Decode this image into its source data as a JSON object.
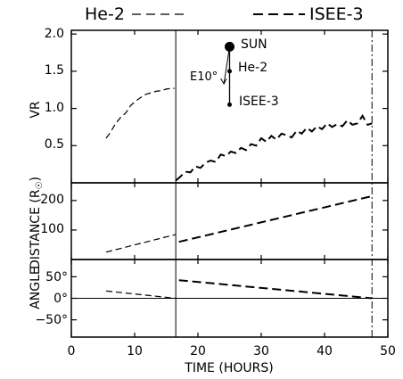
{
  "chart_data": {
    "type": "line",
    "xlabel": "TIME (HOURS)",
    "xlim": [
      0,
      50
    ],
    "xticks": [
      0,
      10,
      20,
      30,
      40,
      50
    ],
    "vertical_lines": [
      {
        "x": 16.5,
        "style": "solid"
      },
      {
        "x": 47.5,
        "style": "dash-dot"
      }
    ],
    "legend": {
      "placement": "top",
      "entries": [
        {
          "name": "He-2",
          "symbol": "- - -"
        },
        {
          "name": "ISEE-3",
          "symbol": "- - -"
        }
      ]
    },
    "panels": [
      {
        "ylabel": "VR",
        "ylim": [
          0,
          2.05
        ],
        "yticks": [
          "0.5",
          "1.0",
          "1.5",
          "2.0"
        ],
        "series": [
          {
            "name": "He-2",
            "dash": "short",
            "x": [
              5.5,
              6.2,
              7,
              7.8,
              8.6,
              9.4,
              10.2,
              11,
              11.8,
              12.6,
              13.4,
              14.2,
              15,
              15.8,
              16.3
            ],
            "y": [
              0.6,
              0.68,
              0.8,
              0.88,
              0.94,
              1.04,
              1.1,
              1.15,
              1.19,
              1.21,
              1.23,
              1.24,
              1.26,
              1.27,
              1.27
            ]
          },
          {
            "name": "ISEE-3",
            "dash": "long",
            "x": [
              16.5,
              17.2,
              18,
              18.8,
              19.6,
              20.4,
              21.2,
              22,
              22.8,
              23.6,
              24.4,
              25.2,
              26,
              26.8,
              27.6,
              28.4,
              29.2,
              30,
              30.8,
              31.6,
              32.4,
              33.2,
              34,
              34.8,
              35.6,
              36.4,
              37.2,
              38,
              38.8,
              39.6,
              40.4,
              41.2,
              42,
              42.8,
              43.6,
              44.4,
              45.2,
              46,
              46.8,
              47.5
            ],
            "y": [
              0.03,
              0.08,
              0.15,
              0.14,
              0.22,
              0.2,
              0.27,
              0.3,
              0.28,
              0.38,
              0.36,
              0.42,
              0.4,
              0.47,
              0.44,
              0.52,
              0.5,
              0.6,
              0.55,
              0.63,
              0.58,
              0.66,
              0.64,
              0.61,
              0.7,
              0.66,
              0.74,
              0.69,
              0.76,
              0.72,
              0.8,
              0.75,
              0.79,
              0.76,
              0.84,
              0.78,
              0.8,
              0.9,
              0.78,
              0.8
            ]
          }
        ],
        "inset": {
          "sun": {
            "label": "SUN",
            "x": 25,
            "y": 1.83
          },
          "he2": {
            "label": "He-2",
            "x": 25,
            "y": 1.5
          },
          "isee3": {
            "label": "ISEE-3",
            "x": 25,
            "y": 1.05
          },
          "arrow": {
            "label": "E10°",
            "x_end": 24.1,
            "y_end": 1.33
          }
        }
      },
      {
        "ylabel": "DISTANCE (R",
        "ylabel_sym": "☉",
        "ylabel_end": ")",
        "ylim": [
          0,
          260
        ],
        "yticks": [
          "100",
          "200"
        ],
        "series": [
          {
            "name": "He-2",
            "dash": "short",
            "x": [
              5.5,
              16.5
            ],
            "y": [
              25,
              85
            ]
          },
          {
            "name": "ISEE-3",
            "dash": "long",
            "x": [
              17,
              47.5
            ],
            "y": [
              60,
              215
            ]
          }
        ]
      },
      {
        "ylabel": "ANGLE",
        "ylim": [
          -90,
          90
        ],
        "yticks": [
          "50°",
          "0°",
          "−50°"
        ],
        "zero_line": true,
        "series": [
          {
            "name": "He-2",
            "dash": "short",
            "x": [
              5.5,
              16.5
            ],
            "y": [
              17,
              0
            ]
          },
          {
            "name": "ISEE-3",
            "dash": "long",
            "x": [
              17,
              47.5
            ],
            "y": [
              42,
              0
            ]
          }
        ]
      }
    ]
  }
}
